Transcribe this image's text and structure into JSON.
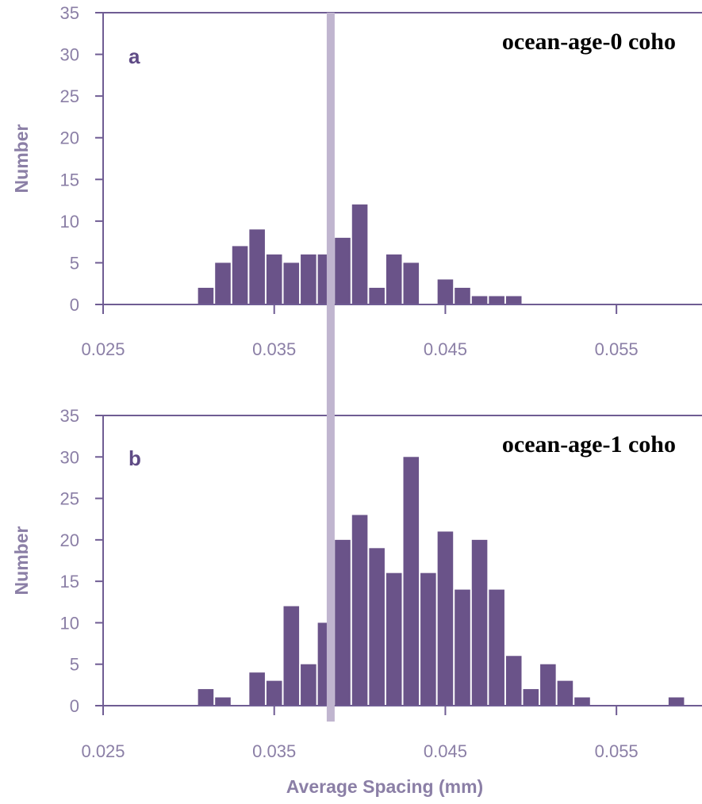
{
  "colors": {
    "bar": "#6a5389",
    "axis": "#6f5c93",
    "tick_text": "#8b7fa6",
    "reference_line": "#c0b5cf"
  },
  "chart_data": [
    {
      "type": "bar",
      "panel_label": "a",
      "title": "ocean-age-0 coho",
      "ylabel": "Number",
      "xlabel": "",
      "xlim": [
        0.025,
        0.06
      ],
      "ylim": [
        0,
        35
      ],
      "x_ticks": [
        "0.025",
        "0.035",
        "0.045",
        "0.055"
      ],
      "y_ticks": [
        "0",
        "5",
        "10",
        "15",
        "20",
        "25",
        "30",
        "35"
      ],
      "bin_width": 0.001,
      "reference_line_x": 0.0383,
      "x": [
        0.031,
        0.032,
        0.033,
        0.034,
        0.035,
        0.036,
        0.037,
        0.038,
        0.039,
        0.04,
        0.041,
        0.042,
        0.043,
        0.045,
        0.046,
        0.047,
        0.048,
        0.049
      ],
      "values": [
        2,
        5,
        7,
        9,
        6,
        5,
        6,
        6,
        8,
        12,
        2,
        6,
        5,
        3,
        2,
        1,
        1,
        1
      ]
    },
    {
      "type": "bar",
      "panel_label": "b",
      "title": "ocean-age-1 coho",
      "ylabel": "Number",
      "xlabel": "Average Spacing (mm)",
      "xlim": [
        0.025,
        0.06
      ],
      "ylim": [
        0,
        35
      ],
      "x_ticks": [
        "0.025",
        "0.035",
        "0.045",
        "0.055"
      ],
      "y_ticks": [
        "0",
        "5",
        "10",
        "15",
        "20",
        "25",
        "30",
        "35"
      ],
      "bin_width": 0.001,
      "reference_line_x": 0.0383,
      "x": [
        0.031,
        0.032,
        0.034,
        0.035,
        0.036,
        0.037,
        0.038,
        0.039,
        0.04,
        0.041,
        0.042,
        0.043,
        0.044,
        0.045,
        0.046,
        0.047,
        0.048,
        0.049,
        0.05,
        0.051,
        0.052,
        0.053,
        0.0585
      ],
      "values": [
        2,
        1,
        4,
        3,
        12,
        5,
        10,
        20,
        23,
        19,
        16,
        30,
        16,
        21,
        14,
        20,
        14,
        6,
        2,
        5,
        3,
        1,
        1
      ]
    }
  ]
}
